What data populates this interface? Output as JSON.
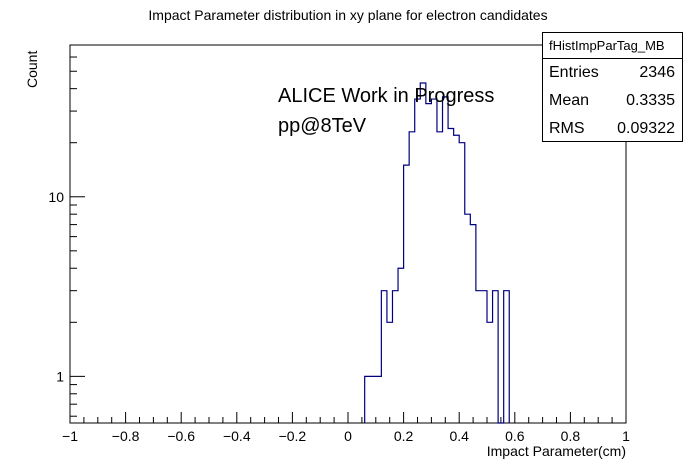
{
  "chart_data": {
    "type": "histogram",
    "title": "Impact Parameter distribution in xy plane for electron candidates",
    "xlabel": "Impact Parameter(cm)",
    "ylabel": "Count",
    "yscale": "log",
    "xlim": [
      -1,
      1
    ],
    "ylim": [
      0.55,
      70
    ],
    "x_ticks": [
      -1,
      -0.8,
      -0.6,
      -0.4,
      -0.2,
      0,
      0.2,
      0.4,
      0.6,
      0.8,
      1
    ],
    "x_tick_labels": [
      "−1",
      "−0.8",
      "−0.6",
      "−0.4",
      "−0.2",
      "0",
      "0.2",
      "0.4",
      "0.6",
      "0.8",
      "1"
    ],
    "y_major_ticks": [
      1,
      10
    ],
    "y_tick_labels": [
      "1",
      "10"
    ],
    "bin_edges_start": 0.06,
    "bin_width": 0.02,
    "bin_counts": [
      1,
      1,
      1,
      3,
      2,
      3,
      4,
      15,
      23,
      35,
      43,
      33,
      35,
      23,
      36,
      24,
      22,
      20,
      8,
      7,
      3,
      3,
      2,
      3,
      0,
      3
    ],
    "annotations": [
      "ALICE Work in Progress",
      "pp@8TeV"
    ],
    "stats_box": {
      "name": "fHistImpParTag_MB",
      "entries_label": "Entries",
      "entries": "2346",
      "mean_label": "Mean",
      "mean": "0.3335",
      "rms_label": "RMS",
      "rms": "0.09322"
    },
    "line_color": "#000080"
  }
}
